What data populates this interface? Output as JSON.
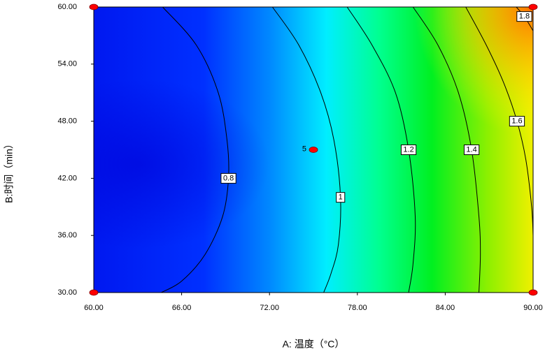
{
  "chart_data": {
    "type": "contour",
    "x_label": "A: 温度（°C）",
    "y_label": "B:时间（min）",
    "xlim": [
      60,
      90
    ],
    "ylim": [
      30,
      60
    ],
    "xticks": [
      {
        "value": 60,
        "label": "60.00"
      },
      {
        "value": 66,
        "label": "66.00"
      },
      {
        "value": 72,
        "label": "72.00"
      },
      {
        "value": 78,
        "label": "78.00"
      },
      {
        "value": 84,
        "label": "84.00"
      },
      {
        "value": 90,
        "label": "90.00"
      }
    ],
    "yticks": [
      {
        "value": 30,
        "label": "30.00"
      },
      {
        "value": 36,
        "label": "36.00"
      },
      {
        "value": 42,
        "label": "42.00"
      },
      {
        "value": 48,
        "label": "48.00"
      },
      {
        "value": 54,
        "label": "54.00"
      },
      {
        "value": 60,
        "label": "60.00"
      }
    ],
    "contours": [
      {
        "level": 0.8,
        "x": [
          64.7,
          67,
          68.5,
          69.1,
          69.2,
          68.8,
          67.6,
          66,
          64.6
        ],
        "y": [
          60,
          56,
          51,
          46,
          42,
          38,
          34,
          31.2,
          30
        ]
      },
      {
        "level": 1,
        "x": [
          72.2,
          74,
          75.5,
          76.4,
          76.85,
          76.7,
          76.2,
          75.7
        ],
        "y": [
          60,
          56,
          51,
          46,
          40,
          35,
          32,
          30
        ]
      },
      {
        "level": 1.2,
        "x": [
          77.3,
          79,
          80.6,
          81.5,
          81.95,
          81.8,
          81.5
        ],
        "y": [
          60,
          56,
          51,
          45,
          38,
          33,
          30
        ]
      },
      {
        "level": 1.4,
        "x": [
          81.8,
          83.5,
          84.9,
          85.8,
          86.3,
          86.4,
          86.3
        ],
        "y": [
          60,
          56,
          51,
          45,
          38,
          34,
          30
        ]
      },
      {
        "level": 1.6,
        "x": [
          85.4,
          86.8,
          88,
          88.9,
          89.5,
          89.9,
          90
        ],
        "y": [
          60,
          56,
          52,
          48,
          44,
          39,
          36
        ]
      },
      {
        "level": 1.8,
        "x": [
          88.85,
          89.4,
          90
        ],
        "y": [
          60,
          59,
          57.5
        ]
      }
    ],
    "design_points": {
      "x": [
        60,
        60,
        90,
        90,
        75
      ],
      "y": [
        30,
        60,
        30,
        60,
        45
      ]
    },
    "center_replicates": 5,
    "line_color": "#000000",
    "point_color": "#ff0000"
  }
}
